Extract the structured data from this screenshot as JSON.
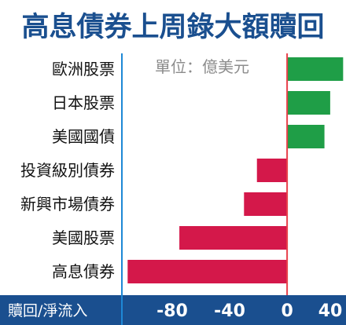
{
  "chart_data": {
    "type": "bar",
    "orientation": "horizontal",
    "title": "高息債券上周錄大額贖回",
    "unit": "單位：億美元",
    "xlabel": "贖回/淨流入",
    "categories": [
      "歐洲股票",
      "日本股票",
      "美國國債",
      "投資級別債券",
      "新興市場債券",
      "美國股票",
      "高息債券"
    ],
    "values": [
      39,
      30,
      26,
      -21,
      -30,
      -75,
      -111
    ],
    "xticks": [
      -80,
      -40,
      0,
      40
    ],
    "xlim": [
      -115,
      41
    ],
    "grid": false,
    "colors": {
      "positive": "#1f9e47",
      "negative": "#d4184a",
      "zero_line": "#e8404a",
      "axis_band": "#1a4f8f",
      "title": "#1a4f8f"
    }
  }
}
